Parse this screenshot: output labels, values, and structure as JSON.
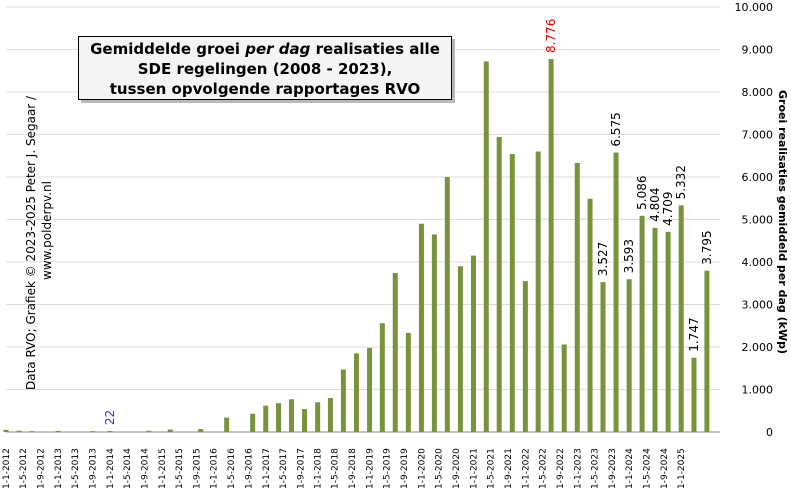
{
  "chart_data": {
    "type": "bar",
    "title_lines": [
      "Gemiddelde  groei ",
      "per dag",
      " realisaties  alle",
      "SDE regelingen (2008 - 2023),",
      "tussen opvolgende rapportages RVO"
    ],
    "ylabel": "Groei realisaties gemiddeld per dag (kWp)",
    "credit": "Data RVO;  Grafiek © 2023-2025 Peter J. Segaar /",
    "credit2": "www.polderpv.nl",
    "ylim": [
      0,
      10000
    ],
    "yticks": [
      "0",
      "1.000",
      "2.000",
      "3.000",
      "4.000",
      "5.000",
      "6.000",
      "7.000",
      "8.000",
      "9.000",
      "10.000"
    ],
    "xtick_labels": [
      "1-1-2012",
      "1-5-2012",
      "1-9-2012",
      "1-1-2013",
      "1-5-2013",
      "1-9-2013",
      "1-1-2014",
      "1-5-2014",
      "1-9-2014",
      "1-1-2015",
      "1-5-2015",
      "1-9-2015",
      "1-1-2016",
      "1-5-2016",
      "1-9-2016",
      "1-1-2017",
      "1-5-2017",
      "1-9-2017",
      "1-1-2018",
      "1-5-2018",
      "1-9-2018",
      "1-1-2019",
      "1-5-2019",
      "1-9-2019",
      "1-1-2020",
      "1-5-2020",
      "1-9-2020",
      "1-1-2021",
      "1-5-2021",
      "1-9-2021",
      "1-1-2022",
      "1-5-2022",
      "1-9-2022",
      "1-1-2023",
      "1-5-2023",
      "1-9-2023",
      "1-1-2024",
      "1-5-2024",
      "1-9-2024",
      "1-1-2025"
    ],
    "bars": [
      {
        "x": "2012-01-01",
        "value": 50
      },
      {
        "x": "2012-04-01",
        "value": 30
      },
      {
        "x": "2012-07-01",
        "value": 20
      },
      {
        "x": "2013-01-01",
        "value": 25
      },
      {
        "x": "2013-09-01",
        "value": 20
      },
      {
        "x": "2014-01-01",
        "value": 22
      },
      {
        "x": "2014-10-01",
        "value": 30
      },
      {
        "x": "2015-03-01",
        "value": 60
      },
      {
        "x": "2015-10-01",
        "value": 70
      },
      {
        "x": "2016-04-01",
        "value": 340
      },
      {
        "x": "2016-10-01",
        "value": 430
      },
      {
        "x": "2017-01-01",
        "value": 620
      },
      {
        "x": "2017-04-01",
        "value": 680
      },
      {
        "x": "2017-07-01",
        "value": 770
      },
      {
        "x": "2017-10-01",
        "value": 540
      },
      {
        "x": "2018-01-01",
        "value": 700
      },
      {
        "x": "2018-04-01",
        "value": 800
      },
      {
        "x": "2018-07-01",
        "value": 1470
      },
      {
        "x": "2018-10-01",
        "value": 1850
      },
      {
        "x": "2019-01-01",
        "value": 1980
      },
      {
        "x": "2019-04-01",
        "value": 2560
      },
      {
        "x": "2019-07-01",
        "value": 3740
      },
      {
        "x": "2019-10-01",
        "value": 2330
      },
      {
        "x": "2020-01-01",
        "value": 4900
      },
      {
        "x": "2020-04-01",
        "value": 4650
      },
      {
        "x": "2020-07-01",
        "value": 6000
      },
      {
        "x": "2020-10-01",
        "value": 3900
      },
      {
        "x": "2021-01-01",
        "value": 4150
      },
      {
        "x": "2021-04-01",
        "value": 8720
      },
      {
        "x": "2021-07-01",
        "value": 6940
      },
      {
        "x": "2021-10-01",
        "value": 6540
      },
      {
        "x": "2022-01-01",
        "value": 3550
      },
      {
        "x": "2022-04-01",
        "value": 6600
      },
      {
        "x": "2022-07-01",
        "value": 8776
      },
      {
        "x": "2022-10-01",
        "value": 2060
      },
      {
        "x": "2023-01-01",
        "value": 6330
      },
      {
        "x": "2023-04-01",
        "value": 5490
      },
      {
        "x": "2023-07-01",
        "value": 3527
      },
      {
        "x": "2023-10-01",
        "value": 6575
      },
      {
        "x": "2024-01-01",
        "value": 3593
      },
      {
        "x": "2024-04-01",
        "value": 5086
      },
      {
        "x": "2024-07-01",
        "value": 4804
      },
      {
        "x": "2024-10-01",
        "value": 4709
      },
      {
        "x": "2025-01-01",
        "value": 5332
      },
      {
        "x": "2025-04-01",
        "value": 1747
      },
      {
        "x": "2025-07-01",
        "value": 3795
      }
    ],
    "data_labels": [
      {
        "text": "22",
        "bar_index": 5,
        "color": "#3333bb"
      },
      {
        "text": "8.776",
        "bar_index": 33,
        "color": "#dd0000"
      },
      {
        "text": "3.527",
        "bar_index": 37,
        "color": "#000000"
      },
      {
        "text": "6.575",
        "bar_index": 38,
        "color": "#000000"
      },
      {
        "text": "3.593",
        "bar_index": 39,
        "color": "#000000"
      },
      {
        "text": "5.086",
        "bar_index": 40,
        "color": "#000000"
      },
      {
        "text": "4.804",
        "bar_index": 41,
        "color": "#000000"
      },
      {
        "text": "4.709",
        "bar_index": 42,
        "color": "#000000"
      },
      {
        "text": "5.332",
        "bar_index": 43,
        "color": "#000000"
      },
      {
        "text": "1.747",
        "bar_index": 44,
        "color": "#000000"
      },
      {
        "text": "3.795",
        "bar_index": 45,
        "color": "#000000"
      }
    ],
    "bar_color": "#77933c",
    "grid": true,
    "grid_color": "#dddddd"
  }
}
